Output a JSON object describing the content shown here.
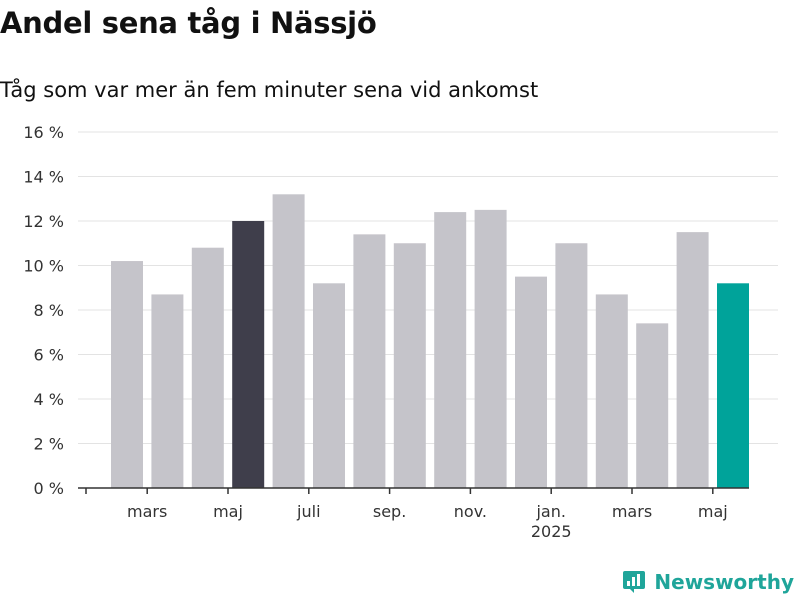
{
  "title": "Andel sena tåg i Nässjö",
  "subtitle": "Tåg som var mer än fem minuter sena vid ankomst",
  "brand": {
    "name": "Newsworthy",
    "icon": "newsworthy-logo-icon",
    "color": "#1fa59a"
  },
  "colors": {
    "bar_default": "#c5c4ca",
    "bar_highlight_dark": "#3f3e4b",
    "bar_latest": "#00a39a",
    "grid": "#e3e3e3",
    "axis": "#333333"
  },
  "chart_data": {
    "type": "bar",
    "y_unit": "%",
    "ylim": [
      0,
      16
    ],
    "yticks": [
      "0 %",
      "2 %",
      "4 %",
      "6 %",
      "8 %",
      "10 %",
      "12 %",
      "14 %",
      "16 %"
    ],
    "ytick_values": [
      0,
      2,
      4,
      6,
      8,
      10,
      12,
      14,
      16
    ],
    "x_tick_labels": [
      {
        "after_index": 0,
        "label": "mars",
        "sublabel": ""
      },
      {
        "after_index": 2,
        "label": "maj",
        "sublabel": ""
      },
      {
        "after_index": 4,
        "label": "juli",
        "sublabel": ""
      },
      {
        "after_index": 6,
        "label": "sep.",
        "sublabel": ""
      },
      {
        "after_index": 8,
        "label": "nov.",
        "sublabel": ""
      },
      {
        "after_index": 10,
        "label": "jan.",
        "sublabel": "2025"
      },
      {
        "after_index": 12,
        "label": "mars",
        "sublabel": ""
      },
      {
        "after_index": 14,
        "label": "maj",
        "sublabel": ""
      }
    ],
    "values": [
      10.2,
      8.7,
      10.8,
      12.0,
      13.2,
      9.2,
      11.4,
      11.0,
      12.4,
      12.5,
      9.5,
      11.0,
      8.7,
      7.4,
      11.5,
      9.2
    ],
    "highlight": {
      "dark_index": 3,
      "latest_index": 15
    },
    "grid": true,
    "legend": "none"
  }
}
